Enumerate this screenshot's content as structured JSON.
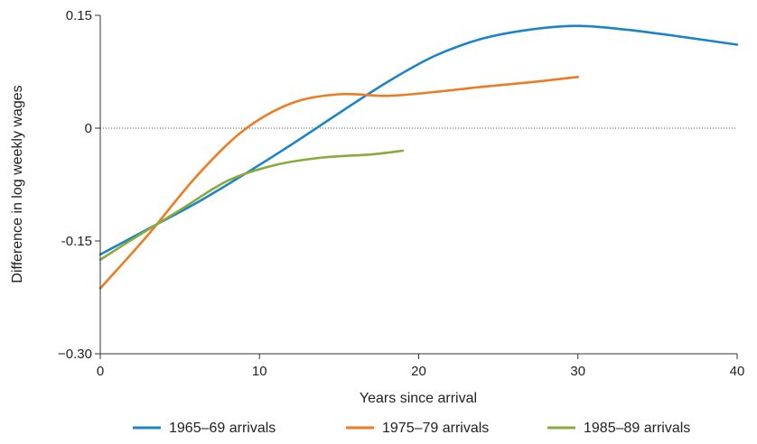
{
  "chart_data": {
    "type": "line",
    "xlabel": "Years since arrival",
    "ylabel": "Difference in log weekly wages",
    "xlim": [
      0,
      40
    ],
    "ylim": [
      -0.3,
      0.15
    ],
    "xticks": [
      0,
      10,
      20,
      30,
      40
    ],
    "xtick_labels": [
      "0",
      "10",
      "20",
      "30",
      "40"
    ],
    "yticks": [
      0.15,
      0,
      -0.15,
      -0.3
    ],
    "ytick_labels": [
      "0.15",
      "0",
      "-0.15",
      "−0.30"
    ],
    "reference_line": {
      "y": 0,
      "style": "dotted"
    },
    "legend_position": "bottom",
    "series": [
      {
        "name": "1965–69 arrivals",
        "color": "#1a84c7",
        "x": [
          0,
          3,
          6,
          9,
          12,
          15,
          18,
          21,
          24,
          27,
          30,
          33,
          36,
          40
        ],
        "y": [
          -0.168,
          -0.134,
          -0.1,
          -0.062,
          -0.022,
          0.02,
          0.061,
          0.096,
          0.119,
          0.131,
          0.136,
          0.131,
          0.123,
          0.111
        ]
      },
      {
        "name": "1975–79 arrivals",
        "color": "#ec7c22",
        "x": [
          0,
          3,
          6,
          9,
          12,
          15,
          18,
          21,
          24,
          27,
          30
        ],
        "y": [
          -0.213,
          -0.142,
          -0.065,
          -0.003,
          0.033,
          0.045,
          0.043,
          0.048,
          0.055,
          0.061,
          0.068
        ]
      },
      {
        "name": "1985–89 arrivals",
        "color": "#8aaa3c",
        "x": [
          0,
          2,
          5,
          8,
          11,
          14,
          17,
          19
        ],
        "y": [
          -0.175,
          -0.148,
          -0.109,
          -0.07,
          -0.049,
          -0.039,
          -0.035,
          -0.03
        ]
      }
    ]
  }
}
